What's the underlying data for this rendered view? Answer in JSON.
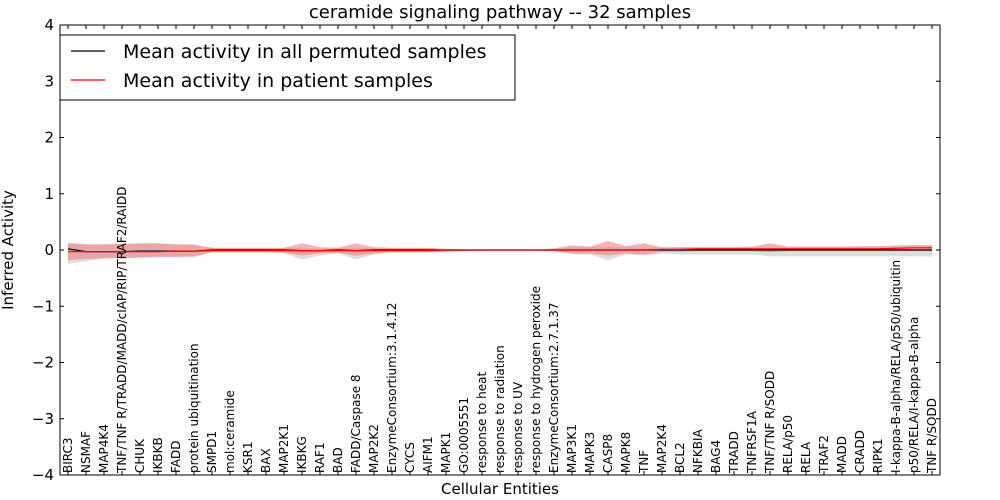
{
  "chart_data": {
    "type": "line",
    "title": "ceramide signaling pathway -- 32 samples",
    "xlabel": "Cellular Entities",
    "ylabel": "Inferred Activity",
    "ylim": [
      -4,
      4
    ],
    "yticks": [
      -4,
      -3,
      -2,
      -1,
      0,
      1,
      2,
      3,
      4
    ],
    "legend_position": "upper-left",
    "categories": [
      "BIRC3",
      "NSMAF",
      "MAP4K4",
      "TNF/TNF R/TRADD/MADD/cIAP/RIP/TRAF2/RAIDD",
      "CHUK",
      "IKBKB",
      "FADD",
      "protein ubiquitination",
      "SMPD1",
      "mol:ceramide",
      "KSR1",
      "BAX",
      "MAP2K1",
      "IKBKG",
      "RAF1",
      "BAD",
      "FADD/Caspase 8",
      "MAP2K2",
      "EnzymeConsortium:3.1.4.12",
      "CYCS",
      "AIFM1",
      "MAPK1",
      "GO:0005551",
      "response to heat",
      "response to radiation",
      "response to UV",
      "response to hydrogen peroxide",
      "EnzymeConsortium:2.7.1.37",
      "MAP3K1",
      "MAPK3",
      "CASP8",
      "MAPK8",
      "TNF",
      "MAP2K4",
      "BCL2",
      "NFKBIA",
      "BAG4",
      "TRADD",
      "TNFRSF1A",
      "TNF/TNF R/SODD",
      "RELA/p50",
      "RELA",
      "TRAF2",
      "MADD",
      "CRADD",
      "RIPK1",
      "I-kappa-B-alpha/RELA/p50/ubiquitin",
      "p50/RELA/I-kappa-B-alpha",
      "TNF R/SODD"
    ],
    "series": [
      {
        "name": "Mean activity in all permuted samples",
        "color": "#000000",
        "values": [
          0.02,
          -0.03,
          -0.03,
          -0.03,
          -0.02,
          -0.02,
          -0.02,
          -0.02,
          0.0,
          0.0,
          0.0,
          0.0,
          0.0,
          -0.01,
          -0.01,
          0.0,
          -0.01,
          0.0,
          0.0,
          0.0,
          0.0,
          0.0,
          0.0,
          0.0,
          0.0,
          0.0,
          0.0,
          0.0,
          0.0,
          0.0,
          0.0,
          0.0,
          0.0,
          0.0,
          0.0,
          0.0,
          0.0,
          0.0,
          0.0,
          0.0,
          0.0,
          0.0,
          0.0,
          0.0,
          0.0,
          0.0,
          0.0,
          0.0,
          0.0
        ],
        "band_low": [
          -0.25,
          -0.2,
          -0.15,
          -0.15,
          -0.14,
          -0.13,
          -0.13,
          -0.13,
          -0.04,
          -0.04,
          -0.04,
          -0.04,
          -0.06,
          -0.17,
          -0.1,
          -0.06,
          -0.17,
          -0.08,
          -0.04,
          -0.04,
          -0.04,
          -0.03,
          -0.02,
          -0.01,
          -0.01,
          -0.01,
          -0.01,
          -0.02,
          -0.08,
          -0.08,
          -0.18,
          -0.08,
          -0.1,
          -0.06,
          -0.08,
          -0.08,
          -0.08,
          -0.08,
          -0.08,
          -0.11,
          -0.11,
          -0.11,
          -0.11,
          -0.11,
          -0.11,
          -0.11,
          -0.11,
          -0.11,
          -0.12
        ],
        "band_high": [
          0.13,
          0.1,
          0.1,
          0.1,
          0.11,
          0.11,
          0.1,
          0.1,
          0.03,
          0.03,
          0.03,
          0.03,
          0.03,
          0.04,
          0.03,
          0.03,
          0.04,
          0.03,
          0.03,
          0.03,
          0.03,
          0.02,
          0.01,
          0.0,
          0.0,
          0.0,
          0.0,
          0.02,
          0.05,
          0.05,
          0.06,
          0.05,
          0.05,
          0.04,
          0.05,
          0.05,
          0.05,
          0.05,
          0.05,
          0.06,
          0.06,
          0.06,
          0.06,
          0.06,
          0.06,
          0.06,
          0.06,
          0.06,
          0.07
        ]
      },
      {
        "name": "Mean activity in patient samples",
        "color": "#ff0000",
        "values": [
          -0.03,
          -0.03,
          -0.03,
          -0.03,
          -0.03,
          -0.03,
          -0.02,
          -0.02,
          -0.01,
          -0.01,
          -0.01,
          -0.01,
          -0.01,
          -0.01,
          -0.01,
          -0.01,
          -0.01,
          -0.01,
          -0.01,
          -0.01,
          -0.01,
          0.0,
          0.0,
          0.0,
          0.0,
          0.0,
          0.0,
          0.0,
          0.0,
          0.0,
          0.0,
          0.0,
          0.0,
          0.01,
          0.01,
          0.02,
          0.02,
          0.02,
          0.02,
          0.02,
          0.02,
          0.02,
          0.02,
          0.02,
          0.02,
          0.02,
          0.03,
          0.04,
          0.04
        ],
        "band_low": [
          -0.18,
          -0.16,
          -0.15,
          -0.14,
          -0.13,
          -0.12,
          -0.12,
          -0.11,
          -0.04,
          -0.04,
          -0.04,
          -0.04,
          -0.05,
          -0.1,
          -0.06,
          -0.05,
          -0.1,
          -0.06,
          -0.04,
          -0.04,
          -0.04,
          -0.03,
          -0.02,
          -0.01,
          -0.01,
          -0.01,
          -0.01,
          -0.02,
          -0.06,
          -0.06,
          -0.1,
          -0.06,
          -0.08,
          -0.03,
          -0.03,
          -0.02,
          -0.02,
          -0.02,
          -0.02,
          -0.04,
          -0.02,
          -0.02,
          -0.02,
          -0.02,
          -0.02,
          -0.02,
          -0.02,
          -0.02,
          -0.02
        ],
        "band_high": [
          0.12,
          0.1,
          0.1,
          0.11,
          0.12,
          0.12,
          0.1,
          0.09,
          0.04,
          0.04,
          0.04,
          0.04,
          0.04,
          0.12,
          0.05,
          0.04,
          0.12,
          0.05,
          0.04,
          0.04,
          0.04,
          0.02,
          0.01,
          0.0,
          0.0,
          0.0,
          0.0,
          0.03,
          0.08,
          0.06,
          0.16,
          0.07,
          0.12,
          0.05,
          0.05,
          0.05,
          0.05,
          0.05,
          0.06,
          0.12,
          0.06,
          0.06,
          0.06,
          0.06,
          0.07,
          0.07,
          0.08,
          0.09,
          0.09
        ]
      }
    ]
  }
}
